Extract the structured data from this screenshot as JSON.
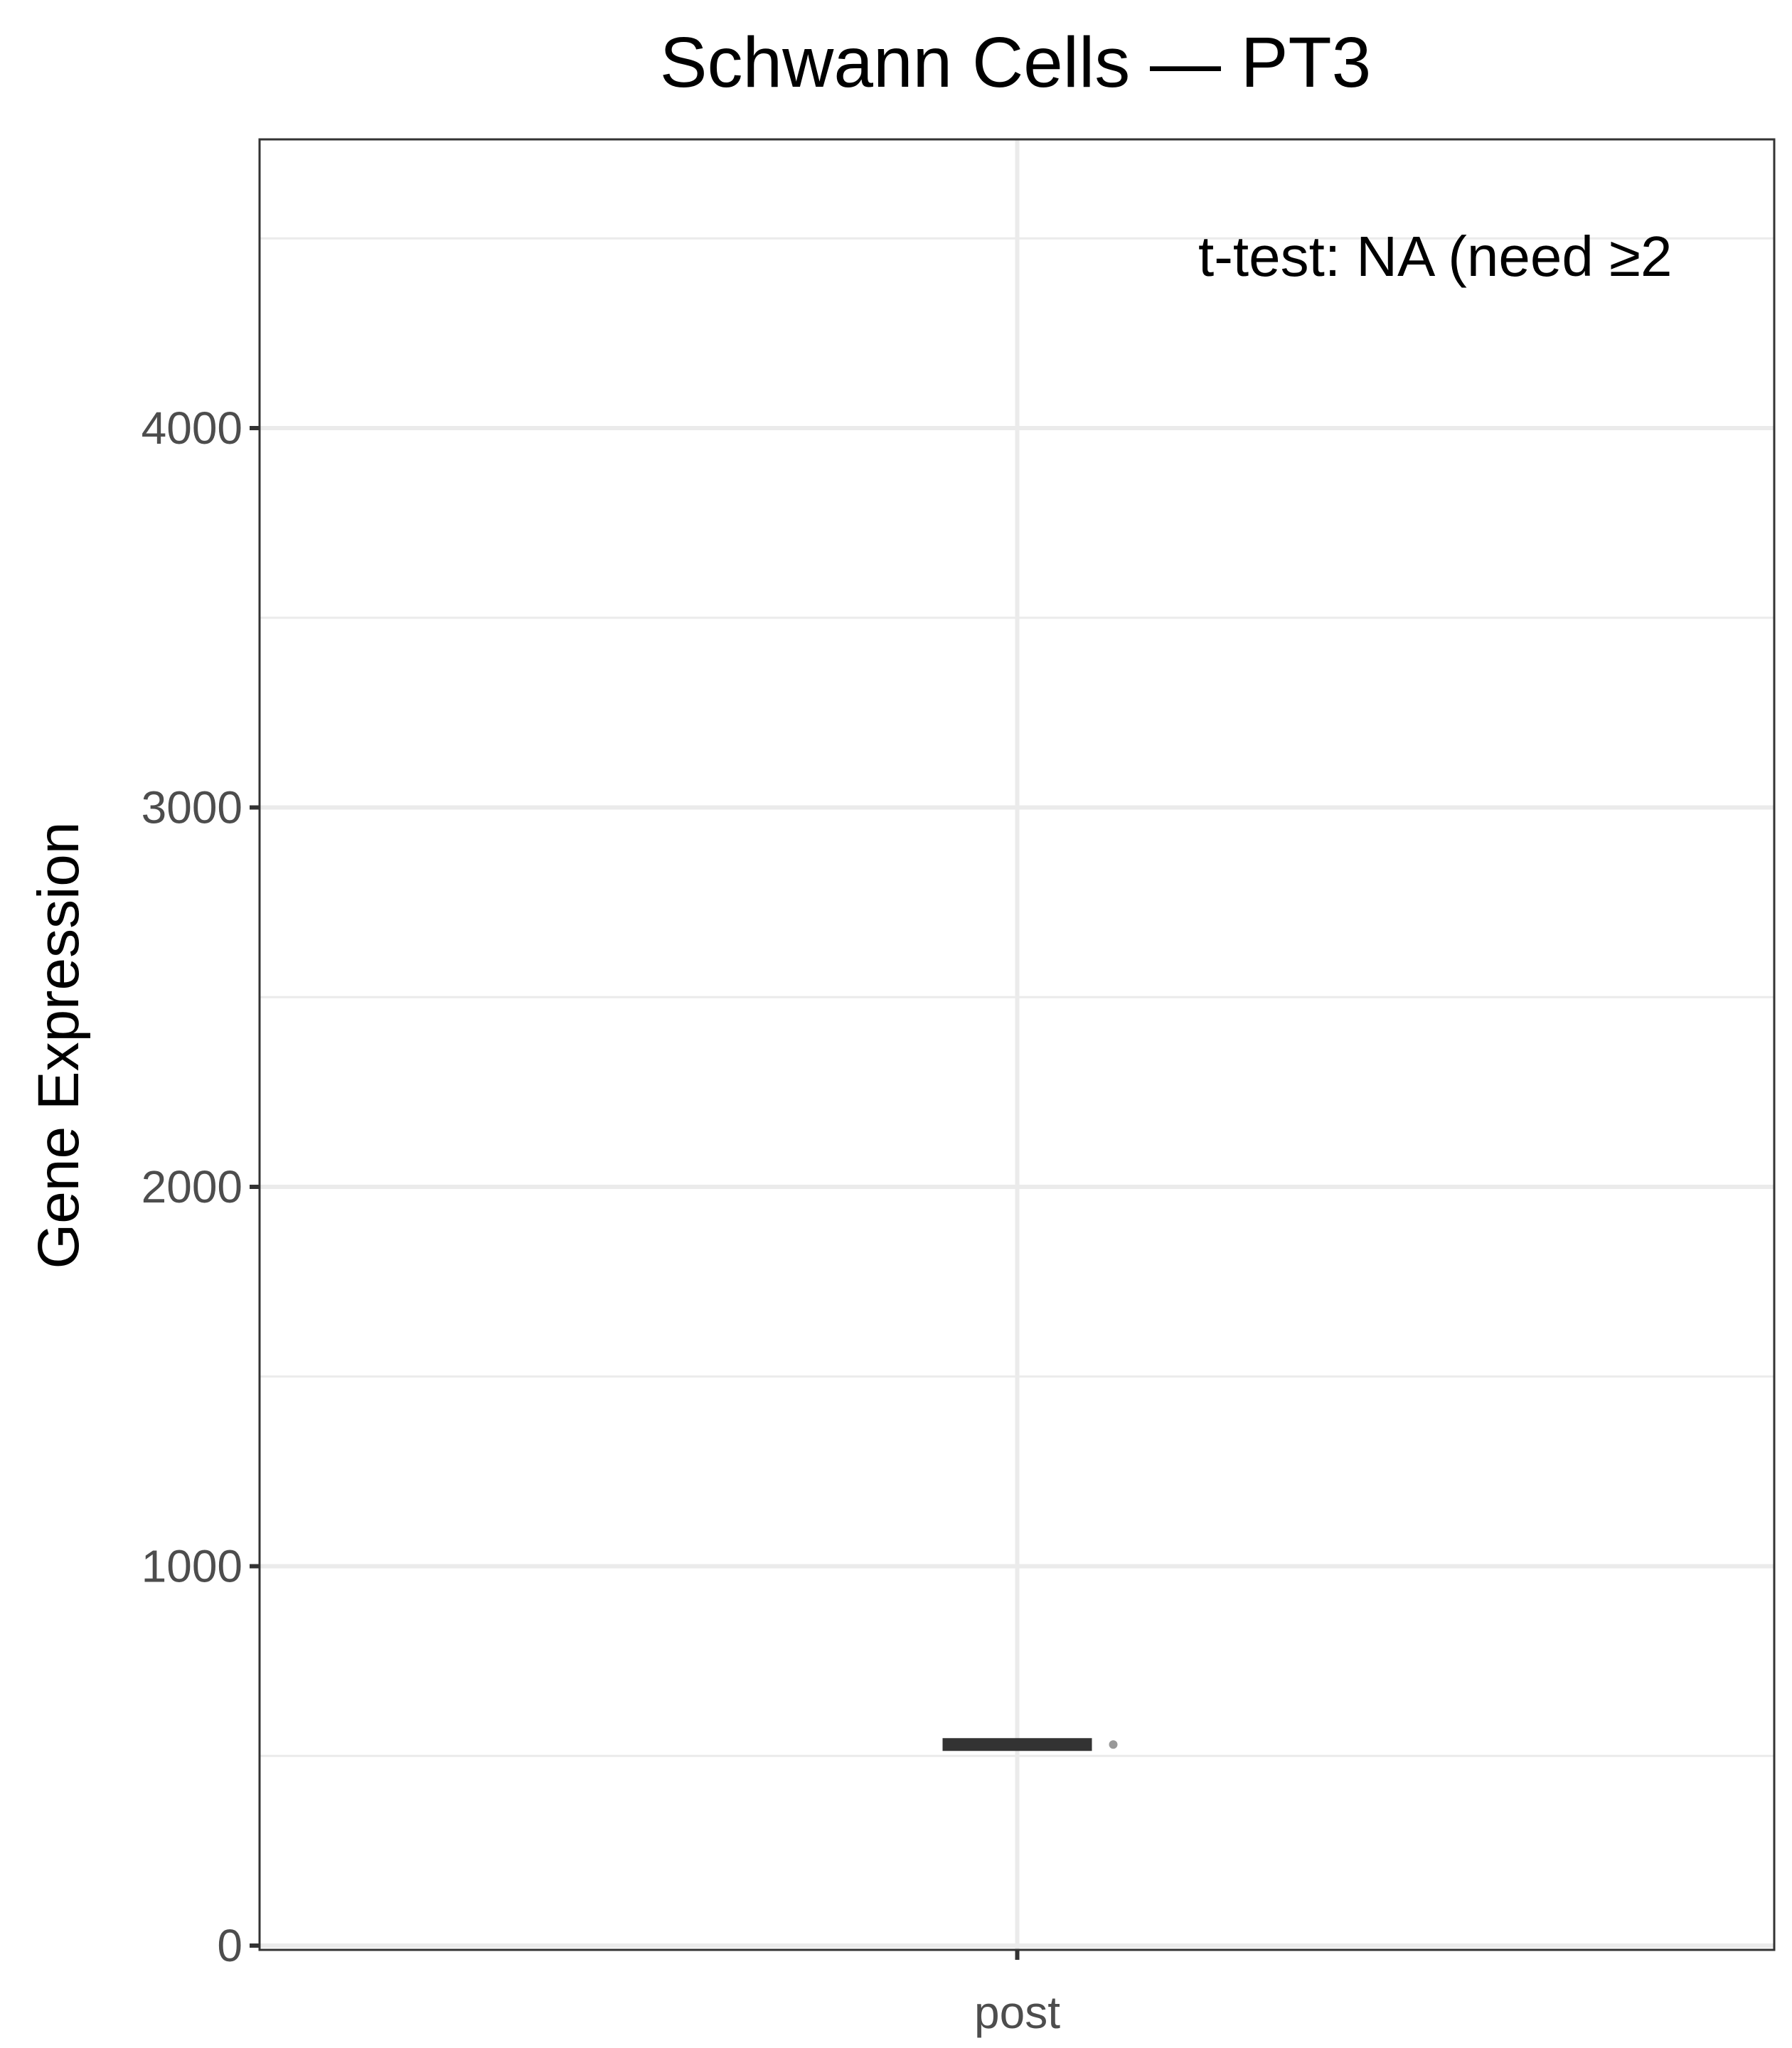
{
  "chart_data": {
    "type": "boxplot",
    "title": "Schwann Cells — PT3",
    "xlabel": "",
    "ylabel": "Gene Expression",
    "categories": [
      "post"
    ],
    "ylim": [
      0,
      4760
    ],
    "y_ticks": [
      0,
      1000,
      2000,
      3000,
      4000
    ],
    "y_tick_labels": [
      "0",
      "1000",
      "2000",
      "3000",
      "4000"
    ],
    "grid": true,
    "series": [
      {
        "category": "post",
        "median": 530,
        "q1": 530,
        "q3": 530,
        "points": [
          530
        ]
      }
    ],
    "annotation": "t-test: NA (need ≥2",
    "colors": {
      "box": "#333333",
      "point": "#999999",
      "grid": "#ebebeb",
      "panel_border": "#333333"
    }
  }
}
